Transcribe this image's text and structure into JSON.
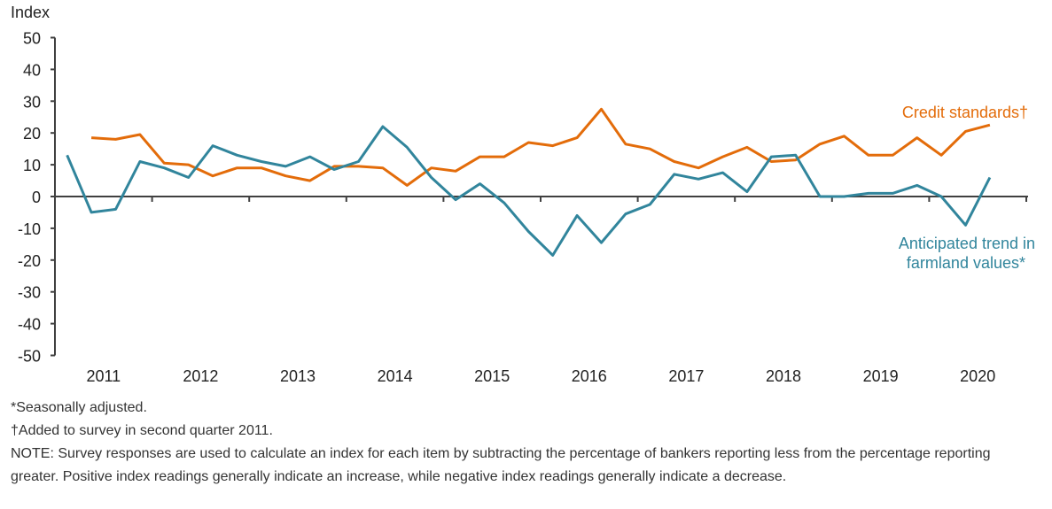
{
  "chart_data": {
    "type": "line",
    "ylabel": "Index",
    "ylim": [
      -50,
      50
    ],
    "yticks": [
      50,
      40,
      30,
      20,
      10,
      0,
      -10,
      -20,
      -30,
      -40,
      -50
    ],
    "xlabels": [
      "2011",
      "2012",
      "2013",
      "2014",
      "2015",
      "2016",
      "2017",
      "2018",
      "2019",
      "2020"
    ],
    "x_start": "2011 Q1",
    "frequency": "quarterly",
    "grid": false,
    "series": [
      {
        "name": "Credit standards†",
        "color": "#E36C0A",
        "start": "2011 Q2",
        "values": [
          18.5,
          18,
          19.5,
          10.5,
          10,
          6.5,
          9,
          9,
          6.5,
          5,
          9.5,
          9.5,
          9,
          3.5,
          9,
          8,
          12.5,
          12.5,
          17,
          16,
          18.5,
          27.5,
          16.5,
          15,
          11,
          9,
          12.5,
          15.5,
          11,
          11.5,
          16.5,
          19,
          13,
          13,
          18.5,
          13,
          20.5,
          22.5
        ]
      },
      {
        "name": "Anticipated trend in farmland values*",
        "name_lines": [
          "Anticipated trend in",
          "farmland values*"
        ],
        "color": "#31859C",
        "start": "2011 Q1",
        "values": [
          13,
          -5,
          -4,
          11,
          9,
          6,
          16,
          13,
          11,
          9.5,
          12.5,
          8.5,
          11,
          22,
          15.5,
          6,
          -1,
          4,
          -2,
          -11,
          -18.5,
          -6,
          -14.5,
          -5.5,
          -2.5,
          7,
          5.5,
          7.5,
          1.5,
          12.5,
          13,
          0,
          0,
          1,
          1,
          3.5,
          0,
          -9,
          6
        ]
      }
    ]
  },
  "notes": [
    "*Seasonally adjusted.",
    "†Added to survey in second quarter 2011.",
    "NOTE: Survey responses are used to calculate an index for each item by subtracting the percentage of bankers reporting less from the percentage reporting greater. Positive index readings generally indicate an increase, while negative index readings generally indicate a decrease."
  ]
}
